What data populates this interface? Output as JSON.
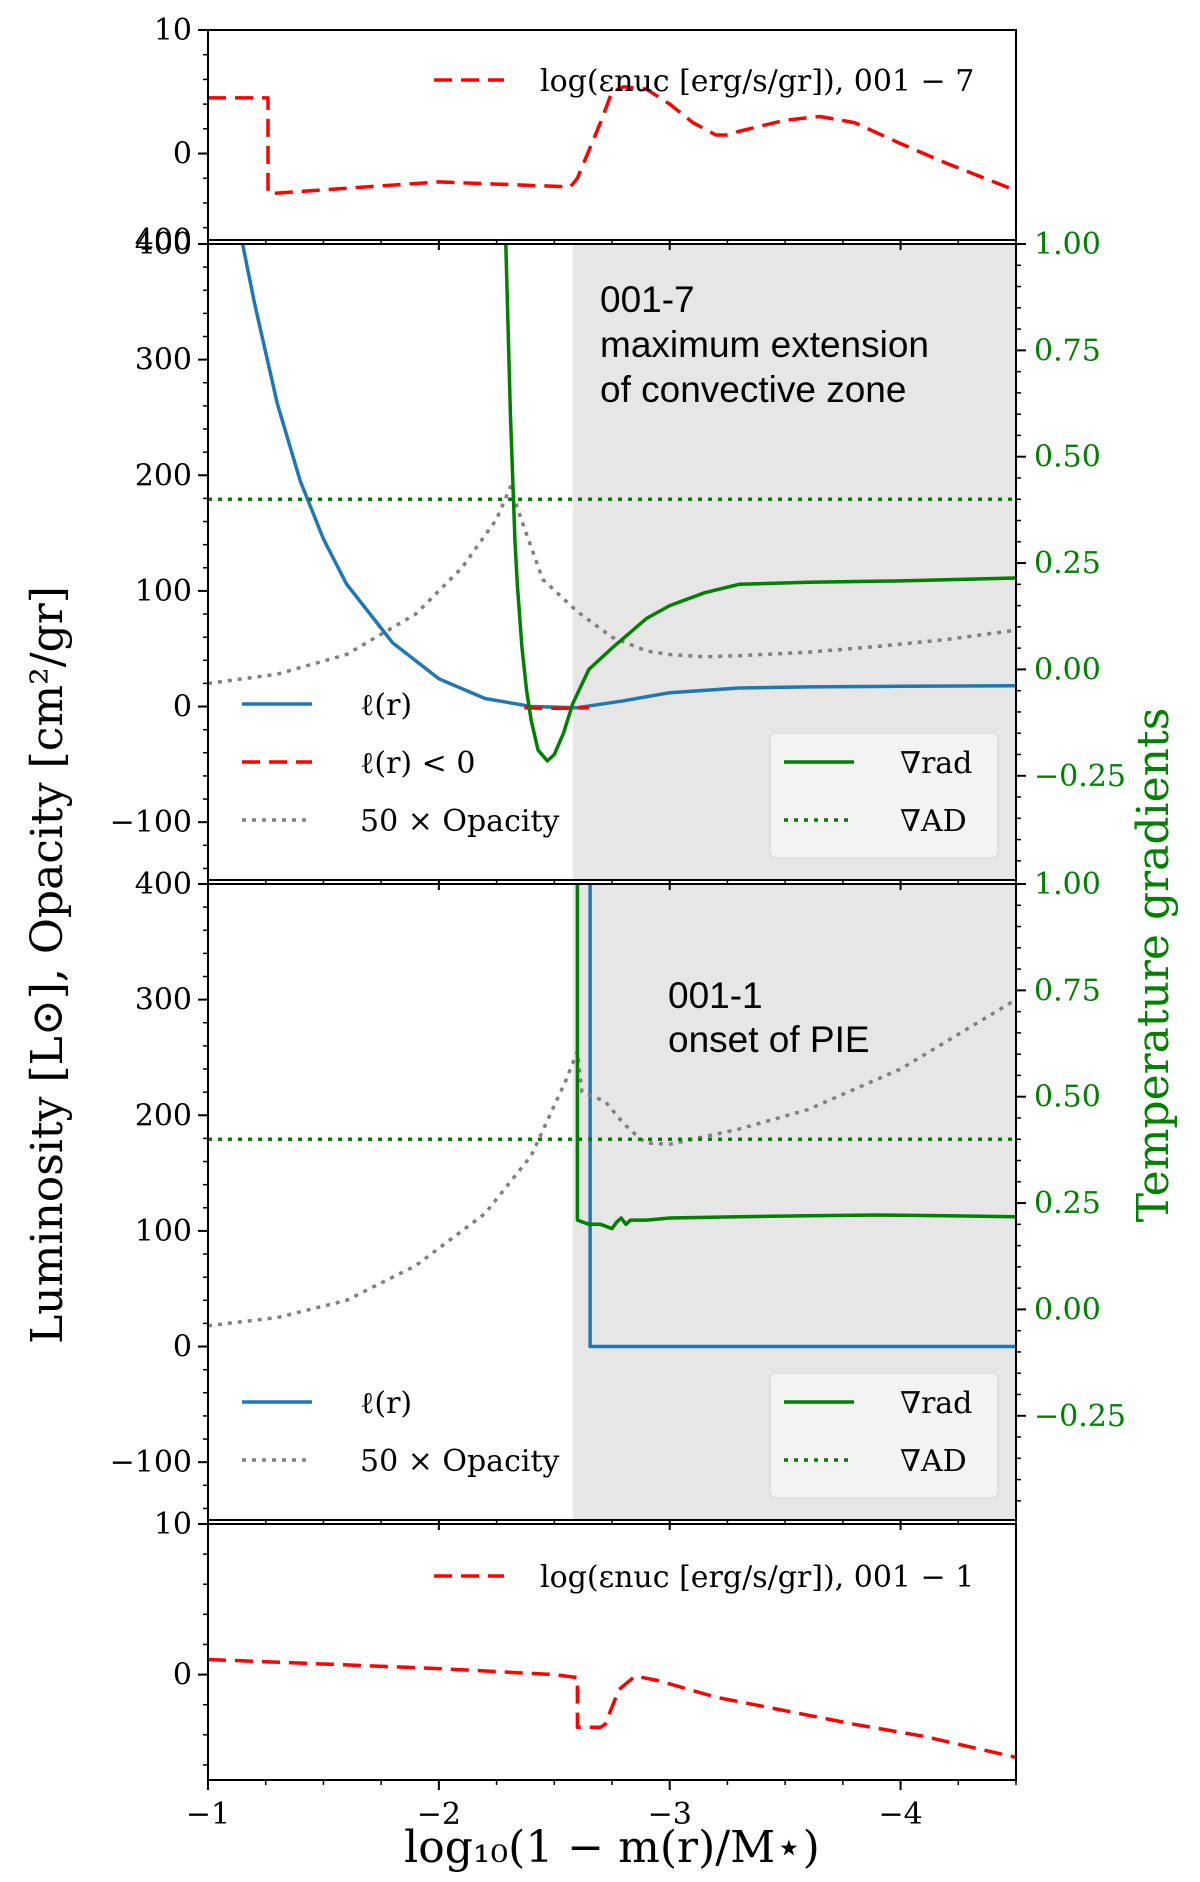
{
  "chart_data": {
    "type": "line",
    "figure_xlabel": "log₁₀(1 − m(r)/M⋆)",
    "figure_ylabel": "Luminosity [L⊙], Opacity [cm²/gr]",
    "right_ylabel": "Temperature gradients",
    "colors": {
      "lum": "#1f77b4",
      "neg": "#ff0000",
      "opacity": "#808080",
      "grad": "#008000",
      "eps": "#ff0000",
      "shade": "#e6e6e6"
    },
    "xlim": [
      -1,
      -4.5
    ],
    "x_ticks": [
      -1,
      -2,
      -3,
      -4
    ],
    "x_tick_labels": [
      "−1",
      "−2",
      "−3",
      "−4"
    ],
    "panels": [
      {
        "id": "top_eps",
        "ylim": [
          -7,
          10
        ],
        "y_ticks": [
          0,
          10
        ],
        "y_tick_labels": [
          "0",
          "10"
        ],
        "bottom_label": "400",
        "legend": [
          "log(εnuc [erg/s/gr]), 001 − 7"
        ],
        "series": [
          {
            "name": "log eps 001-7",
            "style": "dashed",
            "color": "#ff0000",
            "x": [
              -1.0,
              -1.26,
              -1.26,
              -1.3,
              -2.0,
              -2.57,
              -2.6,
              -2.7,
              -2.75,
              -2.8,
              -2.9,
              -3.0,
              -3.1,
              -3.2,
              -3.25,
              -3.3,
              -3.5,
              -3.65,
              -3.8,
              -4.0,
              -4.2,
              -4.5
            ],
            "y": [
              4.5,
              4.5,
              -3.2,
              -3.2,
              -2.3,
              -2.7,
              -2.0,
              2.5,
              5.0,
              5.4,
              5.2,
              4.0,
              2.5,
              1.5,
              1.5,
              1.8,
              2.7,
              3.0,
              2.5,
              0.8,
              -0.8,
              -3.0
            ]
          }
        ]
      },
      {
        "id": "mid_001_7",
        "ylim": [
          -150,
          400
        ],
        "y_ticks": [
          -100,
          0,
          100,
          200,
          300,
          400
        ],
        "y_tick_labels": [
          "−100",
          "0",
          "100",
          "200",
          "300",
          "400"
        ],
        "right_ylim": [
          -0.495,
          1.0
        ],
        "right_ticks": [
          -0.25,
          0.0,
          0.25,
          0.5,
          0.75,
          1.0
        ],
        "right_tick_labels": [
          "−0.25",
          "0.00",
          "0.25",
          "0.50",
          "0.75",
          "1.00"
        ],
        "shade_from": -2.58,
        "annotation": [
          "001-7",
          "maximum extension",
          "of convective zone"
        ],
        "legend_left": [
          "ℓ(r)",
          "ℓ(r) < 0",
          "50 × Opacity"
        ],
        "legend_right": [
          "∇rad",
          "∇AD"
        ],
        "series": [
          {
            "name": "l(r)",
            "axis": "left",
            "style": "solid",
            "color": "#1f77b4",
            "x": [
              -1.15,
              -1.2,
              -1.3,
              -1.4,
              -1.5,
              -1.6,
              -1.8,
              -2.0,
              -2.2,
              -2.4,
              -2.6,
              -2.8,
              -3.0,
              -3.3,
              -3.6,
              -4.0,
              -4.5
            ],
            "y": [
              400,
              350,
              262,
              195,
              145,
              106,
              55,
              24,
              7,
              0,
              -1,
              5,
              12,
              16,
              17,
              17.5,
              18
            ]
          },
          {
            "name": "l(r) < 0",
            "axis": "left",
            "style": "dashed",
            "color": "#ff0000",
            "x": [
              -2.37,
              -2.45,
              -2.55,
              -2.65
            ],
            "y": [
              -1,
              -1.5,
              -1.5,
              -1
            ]
          },
          {
            "name": "50 x Opacity",
            "axis": "left",
            "style": "dotted",
            "color": "#808080",
            "x": [
              -1.0,
              -1.3,
              -1.6,
              -1.9,
              -2.1,
              -2.25,
              -2.31,
              -2.36,
              -2.45,
              -2.6,
              -2.75,
              -2.9,
              -3.0,
              -3.15,
              -3.3,
              -3.6,
              -3.9,
              -4.2,
              -4.5
            ],
            "y": [
              20,
              28,
              45,
              80,
              120,
              162,
              190,
              160,
              110,
              82,
              60,
              48,
              45,
              43,
              44,
              47,
              52,
              58,
              66
            ]
          },
          {
            "name": "nabla_rad",
            "axis": "right",
            "style": "solid",
            "color": "#008000",
            "x": [
              -2.29,
              -2.3,
              -2.31,
              -2.32,
              -2.33,
              -2.34,
              -2.36,
              -2.38,
              -2.4,
              -2.43,
              -2.47,
              -2.5,
              -2.54,
              -2.58,
              -2.65,
              -2.75,
              -2.9,
              -3.0,
              -3.15,
              -3.3,
              -3.6,
              -4.0,
              -4.5
            ],
            "y": [
              1.0,
              0.8,
              0.6,
              0.45,
              0.3,
              0.2,
              0.05,
              -0.05,
              -0.12,
              -0.19,
              -0.215,
              -0.2,
              -0.15,
              -0.08,
              0.0,
              0.05,
              0.12,
              0.15,
              0.18,
              0.2,
              0.205,
              0.208,
              0.215
            ]
          },
          {
            "name": "nabla_AD",
            "axis": "right",
            "style": "dotted",
            "color": "#008000",
            "x": [
              -1.0,
              -4.5
            ],
            "y": [
              0.4,
              0.4
            ]
          }
        ]
      },
      {
        "id": "mid_001_1",
        "ylim": [
          -150,
          400
        ],
        "y_ticks": [
          -100,
          0,
          100,
          200,
          300,
          400
        ],
        "y_tick_labels": [
          "−100",
          "0",
          "100",
          "200",
          "300",
          "400"
        ],
        "right_ylim": [
          -0.495,
          1.0
        ],
        "right_ticks": [
          -0.25,
          0.0,
          0.25,
          0.5,
          0.75,
          1.0
        ],
        "right_tick_labels": [
          "−0.25",
          "0.00",
          "0.25",
          "0.50",
          "0.75",
          "1.00"
        ],
        "shade_from": -2.58,
        "annotation": [
          "001-1",
          "onset of PIE"
        ],
        "legend_left": [
          "ℓ(r)",
          "50 × Opacity"
        ],
        "legend_right": [
          "∇rad",
          "∇AD"
        ],
        "series": [
          {
            "name": "l(r)",
            "axis": "left",
            "style": "solid",
            "color": "#1f77b4",
            "x": [
              -2.655,
              -2.655,
              -4.5
            ],
            "y": [
              400,
              0,
              0
            ]
          },
          {
            "name": "50 x Opacity",
            "axis": "left",
            "style": "dotted",
            "color": "#808080",
            "x": [
              -1.0,
              -1.3,
              -1.6,
              -1.9,
              -2.2,
              -2.4,
              -2.55,
              -2.6,
              -2.62,
              -2.72,
              -2.8,
              -2.87,
              -2.9,
              -3.0,
              -3.3,
              -3.6,
              -4.0,
              -4.5
            ],
            "y": [
              18,
              25,
              40,
              70,
              115,
              165,
              230,
              255,
              220,
              212,
              193,
              180,
              176,
              175,
              188,
              205,
              240,
              300
            ]
          },
          {
            "name": "nabla_rad",
            "axis": "right",
            "style": "solid",
            "color": "#008000",
            "x": [
              -2.6,
              -2.6,
              -2.65,
              -2.7,
              -2.75,
              -2.77,
              -2.79,
              -2.81,
              -2.83,
              -2.9,
              -3.0,
              -3.3,
              -3.6,
              -3.9,
              -4.2,
              -4.5
            ],
            "y": [
              1.0,
              0.21,
              0.2,
              0.2,
              0.19,
              0.205,
              0.215,
              0.2,
              0.21,
              0.21,
              0.215,
              0.218,
              0.22,
              0.222,
              0.22,
              0.218
            ]
          },
          {
            "name": "nabla_AD",
            "axis": "right",
            "style": "dotted",
            "color": "#008000",
            "x": [
              -1.0,
              -4.5
            ],
            "y": [
              0.4,
              0.4
            ]
          }
        ]
      },
      {
        "id": "bottom_eps",
        "ylim": [
          -7,
          10
        ],
        "y_ticks": [
          0,
          10
        ],
        "y_tick_labels": [
          "0",
          "10"
        ],
        "legend": [
          "log(εnuc [erg/s/gr]), 001 − 1"
        ],
        "series": [
          {
            "name": "log eps 001-1",
            "style": "dashed",
            "color": "#ff0000",
            "x": [
              -1.0,
              -1.5,
              -2.0,
              -2.5,
              -2.6,
              -2.6,
              -2.7,
              -2.72,
              -2.78,
              -2.85,
              -2.95,
              -3.2,
              -3.5,
              -3.8,
              -4.1,
              -4.5
            ],
            "y": [
              1.0,
              0.7,
              0.4,
              0.0,
              -0.2,
              -3.5,
              -3.5,
              -3.3,
              -1.0,
              -0.1,
              -0.4,
              -1.5,
              -2.4,
              -3.3,
              -4.1,
              -5.5
            ]
          }
        ]
      }
    ]
  }
}
